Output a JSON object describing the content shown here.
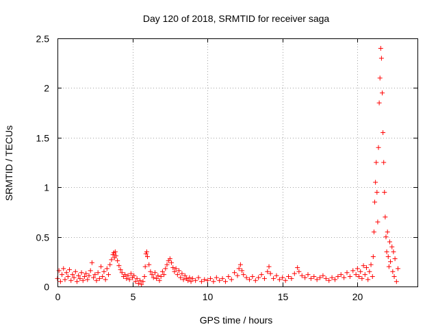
{
  "chart_data": {
    "type": "scatter",
    "title": "Day 120 of 2018, SRMTID for receiver saga",
    "xlabel": "GPS time / hours",
    "ylabel": "SRMTID / TECUs",
    "xlim": [
      0,
      24
    ],
    "ylim": [
      0,
      2.5
    ],
    "grid": true,
    "marker": "+",
    "xticks": [
      0,
      5,
      10,
      15,
      20
    ],
    "xtick_labels": [
      "0",
      "5",
      "10",
      "15",
      "20"
    ],
    "yticks": [
      0,
      0.5,
      1,
      1.5,
      2,
      2.5
    ],
    "ytick_labels": [
      "0",
      "0.5",
      "1",
      "1.5",
      "2",
      "2.5"
    ],
    "series": [
      {
        "name": "SRMTID",
        "color": "#ff0000",
        "points": [
          [
            0.0,
            0.08
          ],
          [
            0.1,
            0.16
          ],
          [
            0.2,
            0.05
          ],
          [
            0.3,
            0.12
          ],
          [
            0.4,
            0.18
          ],
          [
            0.5,
            0.07
          ],
          [
            0.6,
            0.14
          ],
          [
            0.7,
            0.1
          ],
          [
            0.8,
            0.17
          ],
          [
            0.9,
            0.06
          ],
          [
            1.0,
            0.12
          ],
          [
            1.1,
            0.09
          ],
          [
            1.2,
            0.15
          ],
          [
            1.3,
            0.05
          ],
          [
            1.4,
            0.11
          ],
          [
            1.5,
            0.08
          ],
          [
            1.6,
            0.14
          ],
          [
            1.7,
            0.06
          ],
          [
            1.8,
            0.1
          ],
          [
            1.9,
            0.13
          ],
          [
            2.0,
            0.07
          ],
          [
            2.1,
            0.11
          ],
          [
            2.2,
            0.16
          ],
          [
            2.3,
            0.24
          ],
          [
            2.4,
            0.09
          ],
          [
            2.5,
            0.12
          ],
          [
            2.6,
            0.06
          ],
          [
            2.7,
            0.14
          ],
          [
            2.8,
            0.08
          ],
          [
            2.9,
            0.2
          ],
          [
            3.0,
            0.1
          ],
          [
            3.1,
            0.15
          ],
          [
            3.2,
            0.07
          ],
          [
            3.3,
            0.18
          ],
          [
            3.4,
            0.12
          ],
          [
            3.5,
            0.22
          ],
          [
            3.6,
            0.27
          ],
          [
            3.7,
            0.32
          ],
          [
            3.75,
            0.34
          ],
          [
            3.8,
            0.29
          ],
          [
            3.85,
            0.35
          ],
          [
            3.9,
            0.31
          ],
          [
            4.0,
            0.26
          ],
          [
            4.1,
            0.21
          ],
          [
            4.2,
            0.17
          ],
          [
            4.3,
            0.14
          ],
          [
            4.4,
            0.1
          ],
          [
            4.5,
            0.12
          ],
          [
            4.6,
            0.08
          ],
          [
            4.7,
            0.11
          ],
          [
            4.8,
            0.07
          ],
          [
            4.9,
            0.13
          ],
          [
            5.0,
            0.09
          ],
          [
            5.1,
            0.11
          ],
          [
            5.2,
            0.05
          ],
          [
            5.3,
            0.08
          ],
          [
            5.4,
            0.03
          ],
          [
            5.5,
            0.06
          ],
          [
            5.6,
            0.02
          ],
          [
            5.7,
            0.05
          ],
          [
            5.8,
            0.1
          ],
          [
            5.85,
            0.2
          ],
          [
            5.9,
            0.33
          ],
          [
            5.95,
            0.35
          ],
          [
            6.0,
            0.3
          ],
          [
            6.1,
            0.22
          ],
          [
            6.2,
            0.15
          ],
          [
            6.3,
            0.12
          ],
          [
            6.4,
            0.09
          ],
          [
            6.5,
            0.14
          ],
          [
            6.6,
            0.08
          ],
          [
            6.7,
            0.11
          ],
          [
            6.8,
            0.06
          ],
          [
            6.9,
            0.1
          ],
          [
            7.0,
            0.15
          ],
          [
            7.1,
            0.12
          ],
          [
            7.2,
            0.18
          ],
          [
            7.3,
            0.22
          ],
          [
            7.4,
            0.26
          ],
          [
            7.5,
            0.28
          ],
          [
            7.6,
            0.24
          ],
          [
            7.7,
            0.19
          ],
          [
            7.8,
            0.15
          ],
          [
            7.9,
            0.18
          ],
          [
            8.0,
            0.12
          ],
          [
            8.1,
            0.16
          ],
          [
            8.2,
            0.09
          ],
          [
            8.3,
            0.13
          ],
          [
            8.4,
            0.07
          ],
          [
            8.5,
            0.11
          ],
          [
            8.6,
            0.08
          ],
          [
            8.7,
            0.06
          ],
          [
            8.8,
            0.09
          ],
          [
            8.9,
            0.05
          ],
          [
            9.0,
            0.08
          ],
          [
            9.2,
            0.06
          ],
          [
            9.4,
            0.09
          ],
          [
            9.6,
            0.05
          ],
          [
            9.8,
            0.07
          ],
          [
            10.0,
            0.06
          ],
          [
            10.2,
            0.08
          ],
          [
            10.4,
            0.05
          ],
          [
            10.6,
            0.09
          ],
          [
            10.8,
            0.06
          ],
          [
            11.0,
            0.08
          ],
          [
            11.2,
            0.05
          ],
          [
            11.4,
            0.1
          ],
          [
            11.6,
            0.07
          ],
          [
            11.8,
            0.14
          ],
          [
            12.0,
            0.11
          ],
          [
            12.1,
            0.18
          ],
          [
            12.2,
            0.22
          ],
          [
            12.3,
            0.16
          ],
          [
            12.4,
            0.12
          ],
          [
            12.6,
            0.09
          ],
          [
            12.8,
            0.07
          ],
          [
            13.0,
            0.1
          ],
          [
            13.2,
            0.06
          ],
          [
            13.4,
            0.09
          ],
          [
            13.6,
            0.12
          ],
          [
            13.8,
            0.08
          ],
          [
            14.0,
            0.15
          ],
          [
            14.1,
            0.2
          ],
          [
            14.2,
            0.13
          ],
          [
            14.4,
            0.08
          ],
          [
            14.6,
            0.11
          ],
          [
            14.8,
            0.07
          ],
          [
            15.0,
            0.09
          ],
          [
            15.2,
            0.06
          ],
          [
            15.4,
            0.1
          ],
          [
            15.6,
            0.08
          ],
          [
            15.8,
            0.13
          ],
          [
            16.0,
            0.19
          ],
          [
            16.1,
            0.15
          ],
          [
            16.3,
            0.11
          ],
          [
            16.5,
            0.09
          ],
          [
            16.7,
            0.12
          ],
          [
            16.9,
            0.08
          ],
          [
            17.1,
            0.1
          ],
          [
            17.3,
            0.07
          ],
          [
            17.5,
            0.09
          ],
          [
            17.7,
            0.11
          ],
          [
            17.9,
            0.08
          ],
          [
            18.1,
            0.06
          ],
          [
            18.3,
            0.09
          ],
          [
            18.5,
            0.07
          ],
          [
            18.7,
            0.1
          ],
          [
            18.9,
            0.12
          ],
          [
            19.1,
            0.09
          ],
          [
            19.3,
            0.14
          ],
          [
            19.5,
            0.1
          ],
          [
            19.7,
            0.16
          ],
          [
            19.9,
            0.12
          ],
          [
            20.0,
            0.18
          ],
          [
            20.1,
            0.1
          ],
          [
            20.2,
            0.15
          ],
          [
            20.3,
            0.08
          ],
          [
            20.4,
            0.21
          ],
          [
            20.5,
            0.12
          ],
          [
            20.6,
            0.19
          ],
          [
            20.7,
            0.07
          ],
          [
            20.8,
            0.15
          ],
          [
            20.9,
            0.22
          ],
          [
            21.0,
            0.1
          ],
          [
            21.05,
            0.3
          ],
          [
            21.1,
            0.55
          ],
          [
            21.15,
            0.85
          ],
          [
            21.2,
            1.05
          ],
          [
            21.25,
            1.25
          ],
          [
            21.3,
            0.95
          ],
          [
            21.35,
            0.65
          ],
          [
            21.4,
            1.4
          ],
          [
            21.45,
            1.85
          ],
          [
            21.5,
            2.1
          ],
          [
            21.55,
            2.4
          ],
          [
            21.6,
            2.3
          ],
          [
            21.65,
            1.95
          ],
          [
            21.7,
            1.55
          ],
          [
            21.75,
            1.25
          ],
          [
            21.8,
            0.95
          ],
          [
            21.85,
            0.7
          ],
          [
            21.9,
            0.5
          ],
          [
            21.95,
            0.35
          ],
          [
            22.0,
            0.55
          ],
          [
            22.05,
            0.3
          ],
          [
            22.1,
            0.2
          ],
          [
            22.15,
            0.45
          ],
          [
            22.2,
            0.25
          ],
          [
            22.3,
            0.4
          ],
          [
            22.35,
            0.15
          ],
          [
            22.4,
            0.35
          ],
          [
            22.45,
            0.1
          ],
          [
            22.5,
            0.28
          ],
          [
            22.6,
            0.05
          ],
          [
            22.7,
            0.18
          ]
        ]
      }
    ]
  }
}
